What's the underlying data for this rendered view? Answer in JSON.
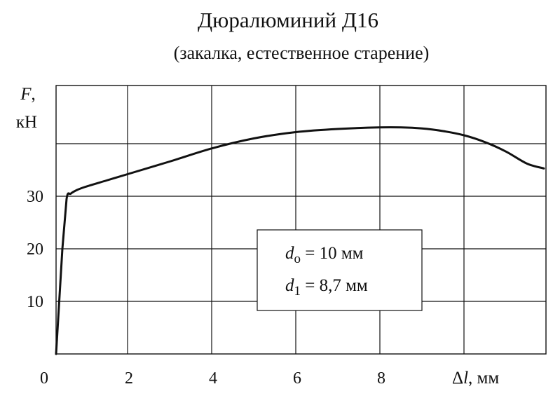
{
  "chart_data": {
    "type": "line",
    "title": "Дюралюминий Д16",
    "subtitle": "(закалка, естественное старение)",
    "ylabel": {
      "symbol": "F",
      "sep": ",",
      "unit": "кН"
    },
    "xlabel": {
      "delta": "Δ",
      "symbol": "l",
      "unit": ", мм"
    },
    "xlim": [
      0,
      12
    ],
    "ylim": [
      0,
      50
    ],
    "x_ticks": [
      0,
      2,
      4,
      6,
      8
    ],
    "x_tick_labels": [
      "0",
      "2",
      "4",
      "6",
      "8"
    ],
    "y_ticks": [
      10,
      20,
      30
    ],
    "y_tick_labels": [
      "10",
      "20",
      "30"
    ],
    "grid": true,
    "series": [
      {
        "x": [
          0.3,
          0.45,
          0.55,
          0.65,
          0.8,
          1.0,
          1.5,
          2.0,
          3.0,
          4.0,
          5.0,
          6.0,
          7.0,
          8.0,
          8.5,
          9.0,
          9.5,
          10.0,
          10.5,
          11.0,
          11.5,
          11.9
        ],
        "y": [
          0,
          20,
          29.5,
          30.5,
          31.2,
          31.8,
          33,
          34.2,
          36.6,
          39.1,
          41.0,
          42.2,
          42.8,
          43.1,
          43.1,
          42.9,
          42.4,
          41.6,
          40.3,
          38.5,
          36.2,
          35.3
        ]
      }
    ],
    "annotation": {
      "lines": [
        {
          "symbol": "d",
          "sub": "o",
          "text": " = 10 мм"
        },
        {
          "symbol": "d",
          "sub": "1",
          "text": " = 8,7 мм"
        }
      ]
    }
  }
}
